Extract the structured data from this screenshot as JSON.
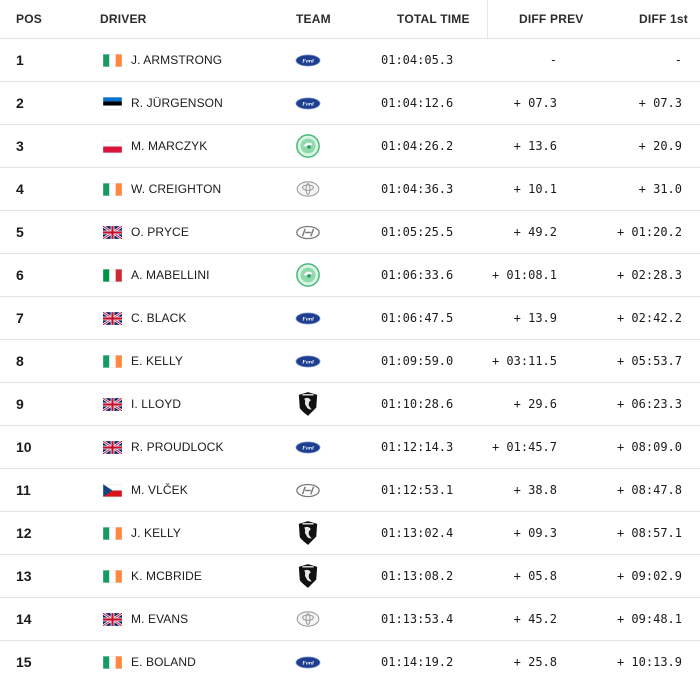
{
  "header": {
    "pos": "POS",
    "driver": "DRIVER",
    "team": "TEAM",
    "total_time": "TOTAL TIME",
    "diff_prev": "DIFF PREV",
    "diff_first": "DIFF 1st"
  },
  "rows": [
    {
      "pos": "1",
      "flag": "ireland-flag",
      "driver": "J. ARMSTRONG",
      "team": "ford-logo",
      "time": "01:04:05.3",
      "prev": "-",
      "first": "-"
    },
    {
      "pos": "2",
      "flag": "estonia-flag",
      "driver": "R. JÜRGENSON",
      "team": "ford-logo",
      "time": "01:04:12.6",
      "prev": "+ 07.3",
      "first": "+ 07.3"
    },
    {
      "pos": "3",
      "flag": "poland-flag",
      "driver": "M. MARCZYK",
      "team": "skoda-logo",
      "time": "01:04:26.2",
      "prev": "+ 13.6",
      "first": "+ 20.9"
    },
    {
      "pos": "4",
      "flag": "ireland-flag",
      "driver": "W. CREIGHTON",
      "team": "toyota-logo",
      "time": "01:04:36.3",
      "prev": "+ 10.1",
      "first": "+ 31.0"
    },
    {
      "pos": "5",
      "flag": "uk-flag",
      "driver": "O. PRYCE",
      "team": "hyundai-logo",
      "time": "01:05:25.5",
      "prev": "+ 49.2",
      "first": "+ 01:20.2"
    },
    {
      "pos": "6",
      "flag": "italy-flag",
      "driver": "A. MABELLINI",
      "team": "skoda-logo",
      "time": "01:06:33.6",
      "prev": "+ 01:08.1",
      "first": "+ 02:28.3"
    },
    {
      "pos": "7",
      "flag": "uk-flag",
      "driver": "C. BLACK",
      "team": "ford-logo",
      "time": "01:06:47.5",
      "prev": "+ 13.9",
      "first": "+ 02:42.2"
    },
    {
      "pos": "8",
      "flag": "ireland-flag",
      "driver": "E. KELLY",
      "team": "ford-logo",
      "time": "01:09:59.0",
      "prev": "+ 03:11.5",
      "first": "+ 05:53.7"
    },
    {
      "pos": "9",
      "flag": "uk-flag",
      "driver": "I. LLOYD",
      "team": "peugeot-logo",
      "time": "01:10:28.6",
      "prev": "+ 29.6",
      "first": "+ 06:23.3"
    },
    {
      "pos": "10",
      "flag": "uk-flag",
      "driver": "R. PROUDLOCK",
      "team": "ford-logo",
      "time": "01:12:14.3",
      "prev": "+ 01:45.7",
      "first": "+ 08:09.0"
    },
    {
      "pos": "11",
      "flag": "czech-flag",
      "driver": "M. VLČEK",
      "team": "hyundai-logo",
      "time": "01:12:53.1",
      "prev": "+ 38.8",
      "first": "+ 08:47.8"
    },
    {
      "pos": "12",
      "flag": "ireland-flag",
      "driver": "J. KELLY",
      "team": "peugeot-logo",
      "time": "01:13:02.4",
      "prev": "+ 09.3",
      "first": "+ 08:57.1"
    },
    {
      "pos": "13",
      "flag": "ireland-flag",
      "driver": "K. MCBRIDE",
      "team": "peugeot-logo",
      "time": "01:13:08.2",
      "prev": "+ 05.8",
      "first": "+ 09:02.9"
    },
    {
      "pos": "14",
      "flag": "uk-flag",
      "driver": "M. EVANS",
      "team": "toyota-logo",
      "time": "01:13:53.4",
      "prev": "+ 45.2",
      "first": "+ 09:48.1"
    },
    {
      "pos": "15",
      "flag": "ireland-flag",
      "driver": "E. BOLAND",
      "team": "ford-logo",
      "time": "01:14:19.2",
      "prev": "+ 25.8",
      "first": "+ 10:13.9"
    }
  ]
}
